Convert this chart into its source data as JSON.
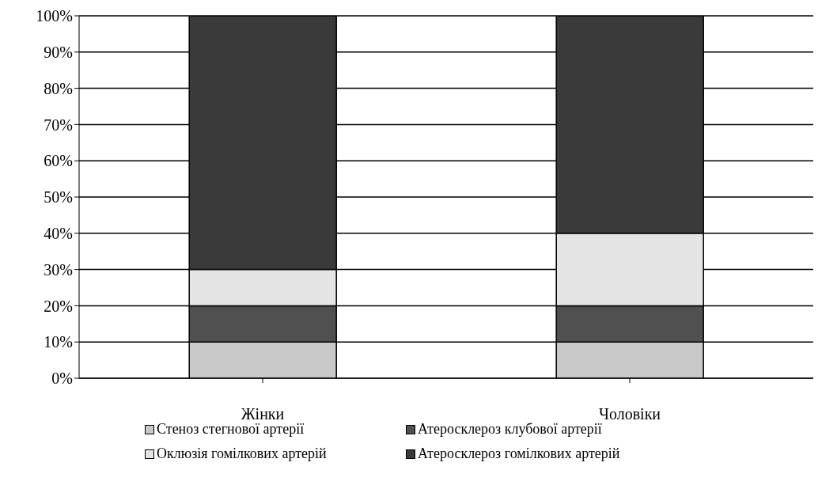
{
  "chart_data": {
    "type": "bar",
    "stacked": true,
    "categories": [
      "Жінки",
      "Чоловіки"
    ],
    "series": [
      {
        "name": "Стеноз стегнової артерії",
        "color": "#c8c8c8",
        "values": [
          10,
          10
        ]
      },
      {
        "name": "Атеросклероз клубової артерії",
        "color": "#505050",
        "values": [
          10,
          10
        ]
      },
      {
        "name": "Оклюзія гомілкових артерій",
        "color": "#e4e4e4",
        "values": [
          10,
          20
        ]
      },
      {
        "name": "Атеросклероз гомілкових артерій",
        "color": "#3a3a3a",
        "values": [
          70,
          60
        ]
      }
    ],
    "ylim": [
      0,
      100
    ],
    "yticks": [
      {
        "value": 0,
        "label": "0%"
      },
      {
        "value": 10,
        "label": "10%"
      },
      {
        "value": 20,
        "label": "20%"
      },
      {
        "value": 30,
        "label": "30%"
      },
      {
        "value": 40,
        "label": "40%"
      },
      {
        "value": 50,
        "label": "50%"
      },
      {
        "value": 60,
        "label": "60%"
      },
      {
        "value": 70,
        "label": "70%"
      },
      {
        "value": 80,
        "label": "80%"
      },
      {
        "value": 90,
        "label": "90%"
      },
      {
        "value": 100,
        "label": "100%"
      }
    ],
    "grid": "y",
    "legend": "bottom"
  }
}
